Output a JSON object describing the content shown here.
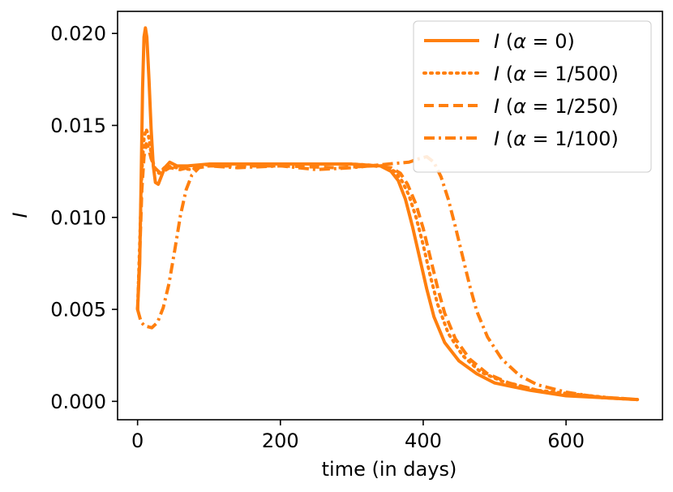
{
  "chart_data": {
    "type": "line",
    "title": "",
    "xlabel": "time (in days)",
    "ylabel": "I",
    "xlim": [
      -28,
      735
    ],
    "ylim": [
      -0.001,
      0.0212
    ],
    "xticks": [
      0,
      200,
      400,
      600
    ],
    "xtick_labels": [
      "0",
      "200",
      "400",
      "600"
    ],
    "yticks": [
      0.0,
      0.005,
      0.01,
      0.015,
      0.02
    ],
    "ytick_labels": [
      "0.000",
      "0.005",
      "0.010",
      "0.015",
      "0.020"
    ],
    "grid": false,
    "legend_position": "top-right",
    "color": "#ff7f0e",
    "series": [
      {
        "name": "I (α = 0)",
        "legend": {
          "prefix": "I (",
          "alpha": "α",
          "rest": " = 0)"
        },
        "style": "solid",
        "points": [
          [
            0,
            0.005
          ],
          [
            3,
            0.0075
          ],
          [
            5,
            0.012
          ],
          [
            7,
            0.017
          ],
          [
            9,
            0.0198
          ],
          [
            11,
            0.0203
          ],
          [
            13,
            0.0198
          ],
          [
            16,
            0.0175
          ],
          [
            19,
            0.0148
          ],
          [
            22,
            0.0128
          ],
          [
            25,
            0.0119
          ],
          [
            29,
            0.0118
          ],
          [
            33,
            0.0122
          ],
          [
            38,
            0.0127
          ],
          [
            45,
            0.013
          ],
          [
            55,
            0.0128
          ],
          [
            70,
            0.0128
          ],
          [
            100,
            0.0129
          ],
          [
            200,
            0.0129
          ],
          [
            300,
            0.0129
          ],
          [
            340,
            0.0128
          ],
          [
            355,
            0.0125
          ],
          [
            365,
            0.012
          ],
          [
            375,
            0.011
          ],
          [
            385,
            0.0095
          ],
          [
            395,
            0.0078
          ],
          [
            405,
            0.0061
          ],
          [
            415,
            0.0046
          ],
          [
            430,
            0.0032
          ],
          [
            450,
            0.0022
          ],
          [
            475,
            0.0015
          ],
          [
            500,
            0.001
          ],
          [
            550,
            0.0006
          ],
          [
            600,
            0.0003
          ],
          [
            650,
            0.0002
          ],
          [
            700,
            0.0001
          ]
        ]
      },
      {
        "name": "I (α = 1/500)",
        "legend": {
          "prefix": "I (",
          "alpha": "α",
          "rest": " = 1/500)"
        },
        "style": "dotted",
        "points": [
          [
            0,
            0.005
          ],
          [
            3,
            0.0085
          ],
          [
            6,
            0.0125
          ],
          [
            9,
            0.0143
          ],
          [
            12,
            0.0148
          ],
          [
            15,
            0.0145
          ],
          [
            19,
            0.0135
          ],
          [
            24,
            0.0126
          ],
          [
            30,
            0.0124
          ],
          [
            40,
            0.0128
          ],
          [
            55,
            0.0127
          ],
          [
            75,
            0.0126
          ],
          [
            100,
            0.0129
          ],
          [
            200,
            0.0129
          ],
          [
            300,
            0.0129
          ],
          [
            345,
            0.0128
          ],
          [
            360,
            0.0125
          ],
          [
            370,
            0.012
          ],
          [
            380,
            0.0112
          ],
          [
            390,
            0.01
          ],
          [
            400,
            0.0085
          ],
          [
            410,
            0.0068
          ],
          [
            420,
            0.0053
          ],
          [
            435,
            0.0037
          ],
          [
            455,
            0.0025
          ],
          [
            480,
            0.0016
          ],
          [
            510,
            0.0011
          ],
          [
            560,
            0.0006
          ],
          [
            610,
            0.0004
          ],
          [
            660,
            0.0002
          ],
          [
            700,
            0.0001
          ]
        ]
      },
      {
        "name": "I (α = 1/250)",
        "legend": {
          "prefix": "I (",
          "alpha": "α",
          "rest": " = 1/250)"
        },
        "style": "dashed",
        "points": [
          [
            0,
            0.005
          ],
          [
            3,
            0.008
          ],
          [
            6,
            0.0115
          ],
          [
            9,
            0.0133
          ],
          [
            12,
            0.014
          ],
          [
            15,
            0.0138
          ],
          [
            19,
            0.0132
          ],
          [
            24,
            0.0127
          ],
          [
            32,
            0.0124
          ],
          [
            45,
            0.0127
          ],
          [
            60,
            0.0126
          ],
          [
            80,
            0.0128
          ],
          [
            100,
            0.0128
          ],
          [
            200,
            0.0128
          ],
          [
            280,
            0.0127
          ],
          [
            330,
            0.0128
          ],
          [
            355,
            0.0127
          ],
          [
            368,
            0.0124
          ],
          [
            378,
            0.0118
          ],
          [
            390,
            0.0107
          ],
          [
            400,
            0.0094
          ],
          [
            410,
            0.0078
          ],
          [
            420,
            0.0062
          ],
          [
            430,
            0.0048
          ],
          [
            445,
            0.0034
          ],
          [
            465,
            0.0023
          ],
          [
            490,
            0.0015
          ],
          [
            520,
            0.001
          ],
          [
            570,
            0.0005
          ],
          [
            620,
            0.0003
          ],
          [
            660,
            0.0002
          ],
          [
            700,
            0.0001
          ]
        ]
      },
      {
        "name": "I (α = 1/100)",
        "legend": {
          "prefix": "I (",
          "alpha": "α",
          "rest": " = 1/100)"
        },
        "style": "dashdot",
        "points": [
          [
            0,
            0.005
          ],
          [
            5,
            0.0043
          ],
          [
            10,
            0.0041
          ],
          [
            20,
            0.004
          ],
          [
            28,
            0.0043
          ],
          [
            36,
            0.0051
          ],
          [
            44,
            0.0064
          ],
          [
            52,
            0.0082
          ],
          [
            60,
            0.0101
          ],
          [
            68,
            0.0115
          ],
          [
            76,
            0.0123
          ],
          [
            86,
            0.0127
          ],
          [
            100,
            0.0128
          ],
          [
            140,
            0.0127
          ],
          [
            200,
            0.0128
          ],
          [
            250,
            0.0126
          ],
          [
            300,
            0.0127
          ],
          [
            350,
            0.0129
          ],
          [
            380,
            0.013
          ],
          [
            395,
            0.0132
          ],
          [
            405,
            0.0133
          ],
          [
            415,
            0.013
          ],
          [
            425,
            0.0122
          ],
          [
            435,
            0.011
          ],
          [
            445,
            0.0095
          ],
          [
            455,
            0.0079
          ],
          [
            465,
            0.0063
          ],
          [
            475,
            0.0049
          ],
          [
            490,
            0.0035
          ],
          [
            510,
            0.0023
          ],
          [
            535,
            0.0014
          ],
          [
            560,
            0.0009
          ],
          [
            600,
            0.0005
          ],
          [
            650,
            0.0002
          ],
          [
            700,
            0.0001
          ]
        ]
      }
    ]
  }
}
